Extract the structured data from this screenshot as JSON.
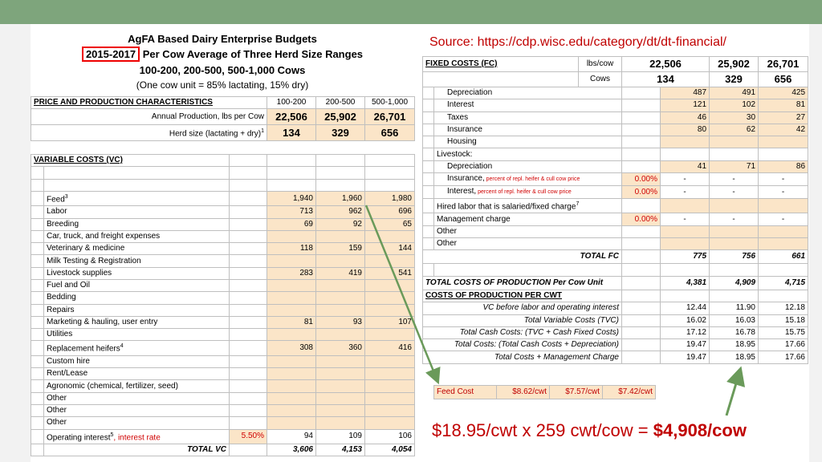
{
  "title": {
    "line1": "AgFA Based Dairy Enterprise Budgets",
    "years": "2015-2017",
    "line2_rest": " Per Cow Average of Three Herd Size Ranges",
    "line3": "100-200, 200-500, 500-1,000 Cows",
    "line4": "(One cow unit = 85% lactating, 15% dry)"
  },
  "price_table": {
    "header": [
      "PRICE AND PRODUCTION CHARACTERISTICS",
      "100-200",
      "200-500",
      "500-1,000"
    ],
    "rows": [
      {
        "label": "Annual Production, lbs per Cow",
        "values": [
          "22,506",
          "25,902",
          "26,701"
        ]
      },
      {
        "label": "Herd size (lactating + dry)",
        "sup": "1",
        "values": [
          "134",
          "329",
          "656"
        ]
      }
    ]
  },
  "vc_table": {
    "header": "VARIABLE COSTS (VC)",
    "rows": [
      {
        "label": "Feed",
        "sup": "3",
        "values": [
          "1,940",
          "1,960",
          "1,980"
        ]
      },
      {
        "label": "Labor",
        "values": [
          "713",
          "962",
          "696"
        ]
      },
      {
        "label": "Breeding",
        "values": [
          "69",
          "92",
          "65"
        ]
      },
      {
        "label": "Car, truck, and freight expenses",
        "values": [
          "",
          "",
          ""
        ]
      },
      {
        "label": "Veterinary & medicine",
        "values": [
          "118",
          "159",
          "144"
        ]
      },
      {
        "label": "Milk Testing & Registration",
        "values": [
          "",
          "",
          ""
        ]
      },
      {
        "label": "Livestock supplies",
        "values": [
          "283",
          "419",
          "541"
        ]
      },
      {
        "label": "Fuel and Oil",
        "values": [
          "",
          "",
          ""
        ]
      },
      {
        "label": "Bedding",
        "values": [
          "",
          "",
          ""
        ]
      },
      {
        "label": "Repairs",
        "values": [
          "",
          "",
          ""
        ]
      },
      {
        "label": "Marketing & hauling, user entry",
        "values": [
          "81",
          "93",
          "107"
        ]
      },
      {
        "label": "Utilities",
        "values": [
          "",
          "",
          ""
        ]
      },
      {
        "label": "Replacement heifers",
        "sup": "4",
        "values": [
          "308",
          "360",
          "416"
        ]
      },
      {
        "label": "Custom hire",
        "values": [
          "",
          "",
          ""
        ]
      },
      {
        "label": "Rent/Lease",
        "values": [
          "",
          "",
          ""
        ]
      },
      {
        "label": "Agronomic (chemical, fertilizer, seed)",
        "values": [
          "",
          "",
          ""
        ]
      },
      {
        "label": "Other",
        "values": [
          "",
          "",
          ""
        ]
      },
      {
        "label": "Other",
        "values": [
          "",
          "",
          ""
        ]
      },
      {
        "label": "Other",
        "values": [
          "",
          "",
          ""
        ]
      }
    ],
    "operating_interest": {
      "label": "Operating interest",
      "sup": "5",
      "label_red": ", interest rate",
      "rate": "5.50%",
      "values": [
        "94",
        "109",
        "106"
      ]
    },
    "total": {
      "label": "TOTAL VC",
      "values": [
        "3,606",
        "4,153",
        "4,054"
      ]
    }
  },
  "source": "Source: https://cdp.wisc.edu/category/dt/dt-financial/",
  "fc_table": {
    "header": {
      "label": "FIXED COSTS (FC)",
      "unit": "lbs/cow",
      "values": [
        "22,506",
        "25,902",
        "26,701"
      ]
    },
    "cows": {
      "unit": "Cows",
      "values": [
        "134",
        "329",
        "656"
      ]
    },
    "rows": [
      {
        "label": "Depreciation",
        "indent": 2,
        "values": [
          "487",
          "491",
          "425"
        ],
        "tan": true
      },
      {
        "label": "Interest",
        "indent": 2,
        "values": [
          "121",
          "102",
          "81"
        ],
        "tan": true
      },
      {
        "label": "Taxes",
        "indent": 2,
        "values": [
          "46",
          "30",
          "27"
        ],
        "tan": true
      },
      {
        "label": "Insurance",
        "indent": 2,
        "values": [
          "80",
          "62",
          "42"
        ],
        "tan": true
      },
      {
        "label": "Housing",
        "indent": 2,
        "values": [
          "",
          "",
          ""
        ],
        "tan": true
      },
      {
        "label": "Livestock:",
        "indent": 1,
        "values": [
          "",
          "",
          ""
        ],
        "tan": false
      },
      {
        "label": "Depreciation",
        "indent": 2,
        "values": [
          "41",
          "71",
          "86"
        ],
        "tan": true
      },
      {
        "label": "Insurance,",
        "note": " percent of repl. heifer & cull cow price",
        "rate": "0.00%",
        "indent": 2,
        "values": [
          "-",
          "-",
          "-"
        ],
        "tan": false
      },
      {
        "label": "Interest,",
        "note": " percent of repl. heifer & cull cow price",
        "rate": "0.00%",
        "indent": 2,
        "values": [
          "-",
          "-",
          "-"
        ],
        "tan": false
      },
      {
        "label": "Hired labor that is salaried/fixed charge",
        "sup": "7",
        "indent": 1,
        "values": [
          "",
          "",
          ""
        ],
        "tan": true
      },
      {
        "label": "Management charge",
        "rate": "0.00%",
        "indent": 1,
        "values": [
          "-",
          "-",
          "-"
        ],
        "tan": false
      },
      {
        "label": "Other",
        "indent": 1,
        "values": [
          "",
          "",
          ""
        ],
        "tan": true
      },
      {
        "label": "Other",
        "indent": 1,
        "values": [
          "",
          "",
          ""
        ],
        "tan": true
      }
    ],
    "total_fc": {
      "label": "TOTAL FC",
      "values": [
        "775",
        "756",
        "661"
      ]
    },
    "total_prod": {
      "label": "TOTAL COSTS OF PRODUCTION Per Cow Unit",
      "values": [
        "4,381",
        "4,909",
        "4,715"
      ]
    }
  },
  "cwt_table": {
    "header": "COSTS OF PRODUCTION PER CWT",
    "rows": [
      {
        "label": "VC before labor and operating interest",
        "values": [
          "12.44",
          "11.90",
          "12.18"
        ]
      },
      {
        "label": "Total Variable Costs (TVC)",
        "values": [
          "16.02",
          "16.03",
          "15.18"
        ]
      },
      {
        "label": "Total Cash Costs:  (TVC + Cash Fixed Costs)",
        "values": [
          "17.12",
          "16.78",
          "15.75"
        ]
      },
      {
        "label": "Total Costs:  (Total Cash Costs + Depreciation)",
        "values": [
          "19.47",
          "18.95",
          "17.66"
        ]
      },
      {
        "label": "Total Costs + Management Charge",
        "values": [
          "19.47",
          "18.95",
          "17.66"
        ]
      }
    ]
  },
  "feed_cost": {
    "label": "Feed Cost",
    "values": [
      "$8.62/cwt",
      "$7.57/cwt",
      "$7.42/cwt"
    ]
  },
  "formula": {
    "text": "$18.95/cwt x 259 cwt/cow = ",
    "result": "$4,908/cow"
  },
  "colors": {
    "topbar": "#7ea57c",
    "red": "#c00000",
    "tan": "#fbe5c8",
    "arrow": "#6a9a5a"
  }
}
